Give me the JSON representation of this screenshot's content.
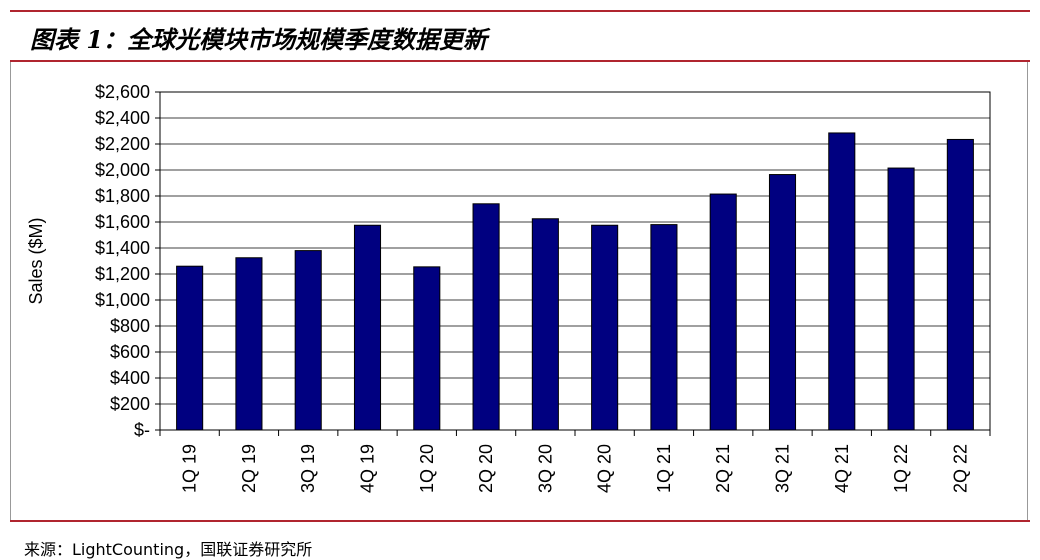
{
  "figure_title": "图表 1：全球光模块市场规模季度数据更新",
  "source_text": "来源：LightCounting，国联证券研究所",
  "colors": {
    "bar": "#000080",
    "rule": "#b0252f",
    "grid": "#000000"
  },
  "chart_data": {
    "type": "bar",
    "title": "",
    "xlabel": "",
    "ylabel": "Sales ($M)",
    "ylim": [
      0,
      2600
    ],
    "yticks": [
      0,
      200,
      400,
      600,
      800,
      1000,
      1200,
      1400,
      1600,
      1800,
      2000,
      2200,
      2400,
      2600
    ],
    "ytick_labels": [
      "$-",
      "$200",
      "$400",
      "$600",
      "$800",
      "$1,000",
      "$1,200",
      "$1,400",
      "$1,600",
      "$1,800",
      "$2,000",
      "$2,200",
      "$2,400",
      "$2,600"
    ],
    "grid": true,
    "legend": "none",
    "categories": [
      "1Q 19",
      "2Q 19",
      "3Q 19",
      "4Q 19",
      "1Q 20",
      "2Q 20",
      "3Q 20",
      "4Q 20",
      "1Q 21",
      "2Q 21",
      "3Q 21",
      "4Q 21",
      "1Q 22",
      "2Q 22"
    ],
    "values": [
      1260,
      1325,
      1380,
      1575,
      1255,
      1740,
      1625,
      1575,
      1580,
      1815,
      1965,
      2285,
      2015,
      2235
    ]
  }
}
